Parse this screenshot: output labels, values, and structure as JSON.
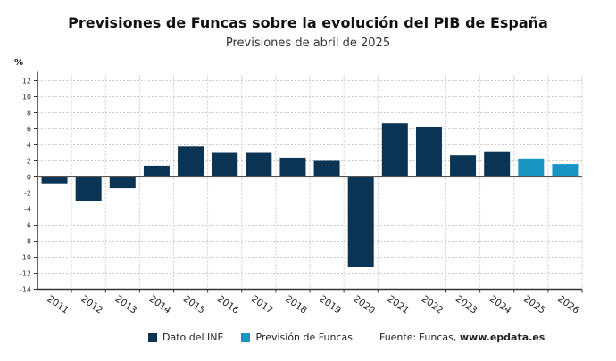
{
  "chart_data": {
    "type": "bar",
    "title": "Previsiones de Funcas sobre la evolución del PIB de España",
    "subtitle": "Previsiones de abril de 2025",
    "ylabel": "%",
    "ylim": [
      -14,
      12
    ],
    "yticks": [
      12,
      10,
      8,
      6,
      4,
      2,
      0,
      -2,
      -4,
      -6,
      -8,
      -10,
      -12,
      -14
    ],
    "grid": true,
    "categories": [
      "2011",
      "2012",
      "2013",
      "2014",
      "2015",
      "2016",
      "2017",
      "2018",
      "2019",
      "2020",
      "2021",
      "2022",
      "2023",
      "2024",
      "2025",
      "2026"
    ],
    "values": [
      -0.8,
      -3.0,
      -1.4,
      1.4,
      3.8,
      3.0,
      3.0,
      2.4,
      2.0,
      -11.2,
      6.7,
      6.2,
      2.7,
      3.2,
      2.3,
      1.6
    ],
    "series_type": [
      "Dato del INE",
      "Dato del INE",
      "Dato del INE",
      "Dato del INE",
      "Dato del INE",
      "Dato del INE",
      "Dato del INE",
      "Dato del INE",
      "Dato del INE",
      "Dato del INE",
      "Dato del INE",
      "Dato del INE",
      "Dato del INE",
      "Dato del INE",
      "Previsión de Funcas",
      "Previsión de Funcas"
    ],
    "legend": [
      {
        "name": "Dato del INE",
        "color": "#0b3354"
      },
      {
        "name": "Previsión de Funcas",
        "color": "#1a95c3"
      }
    ],
    "legend_position": "bottom",
    "source_label": "Fuente: Funcas,",
    "source_site": "www.epdata.es"
  }
}
